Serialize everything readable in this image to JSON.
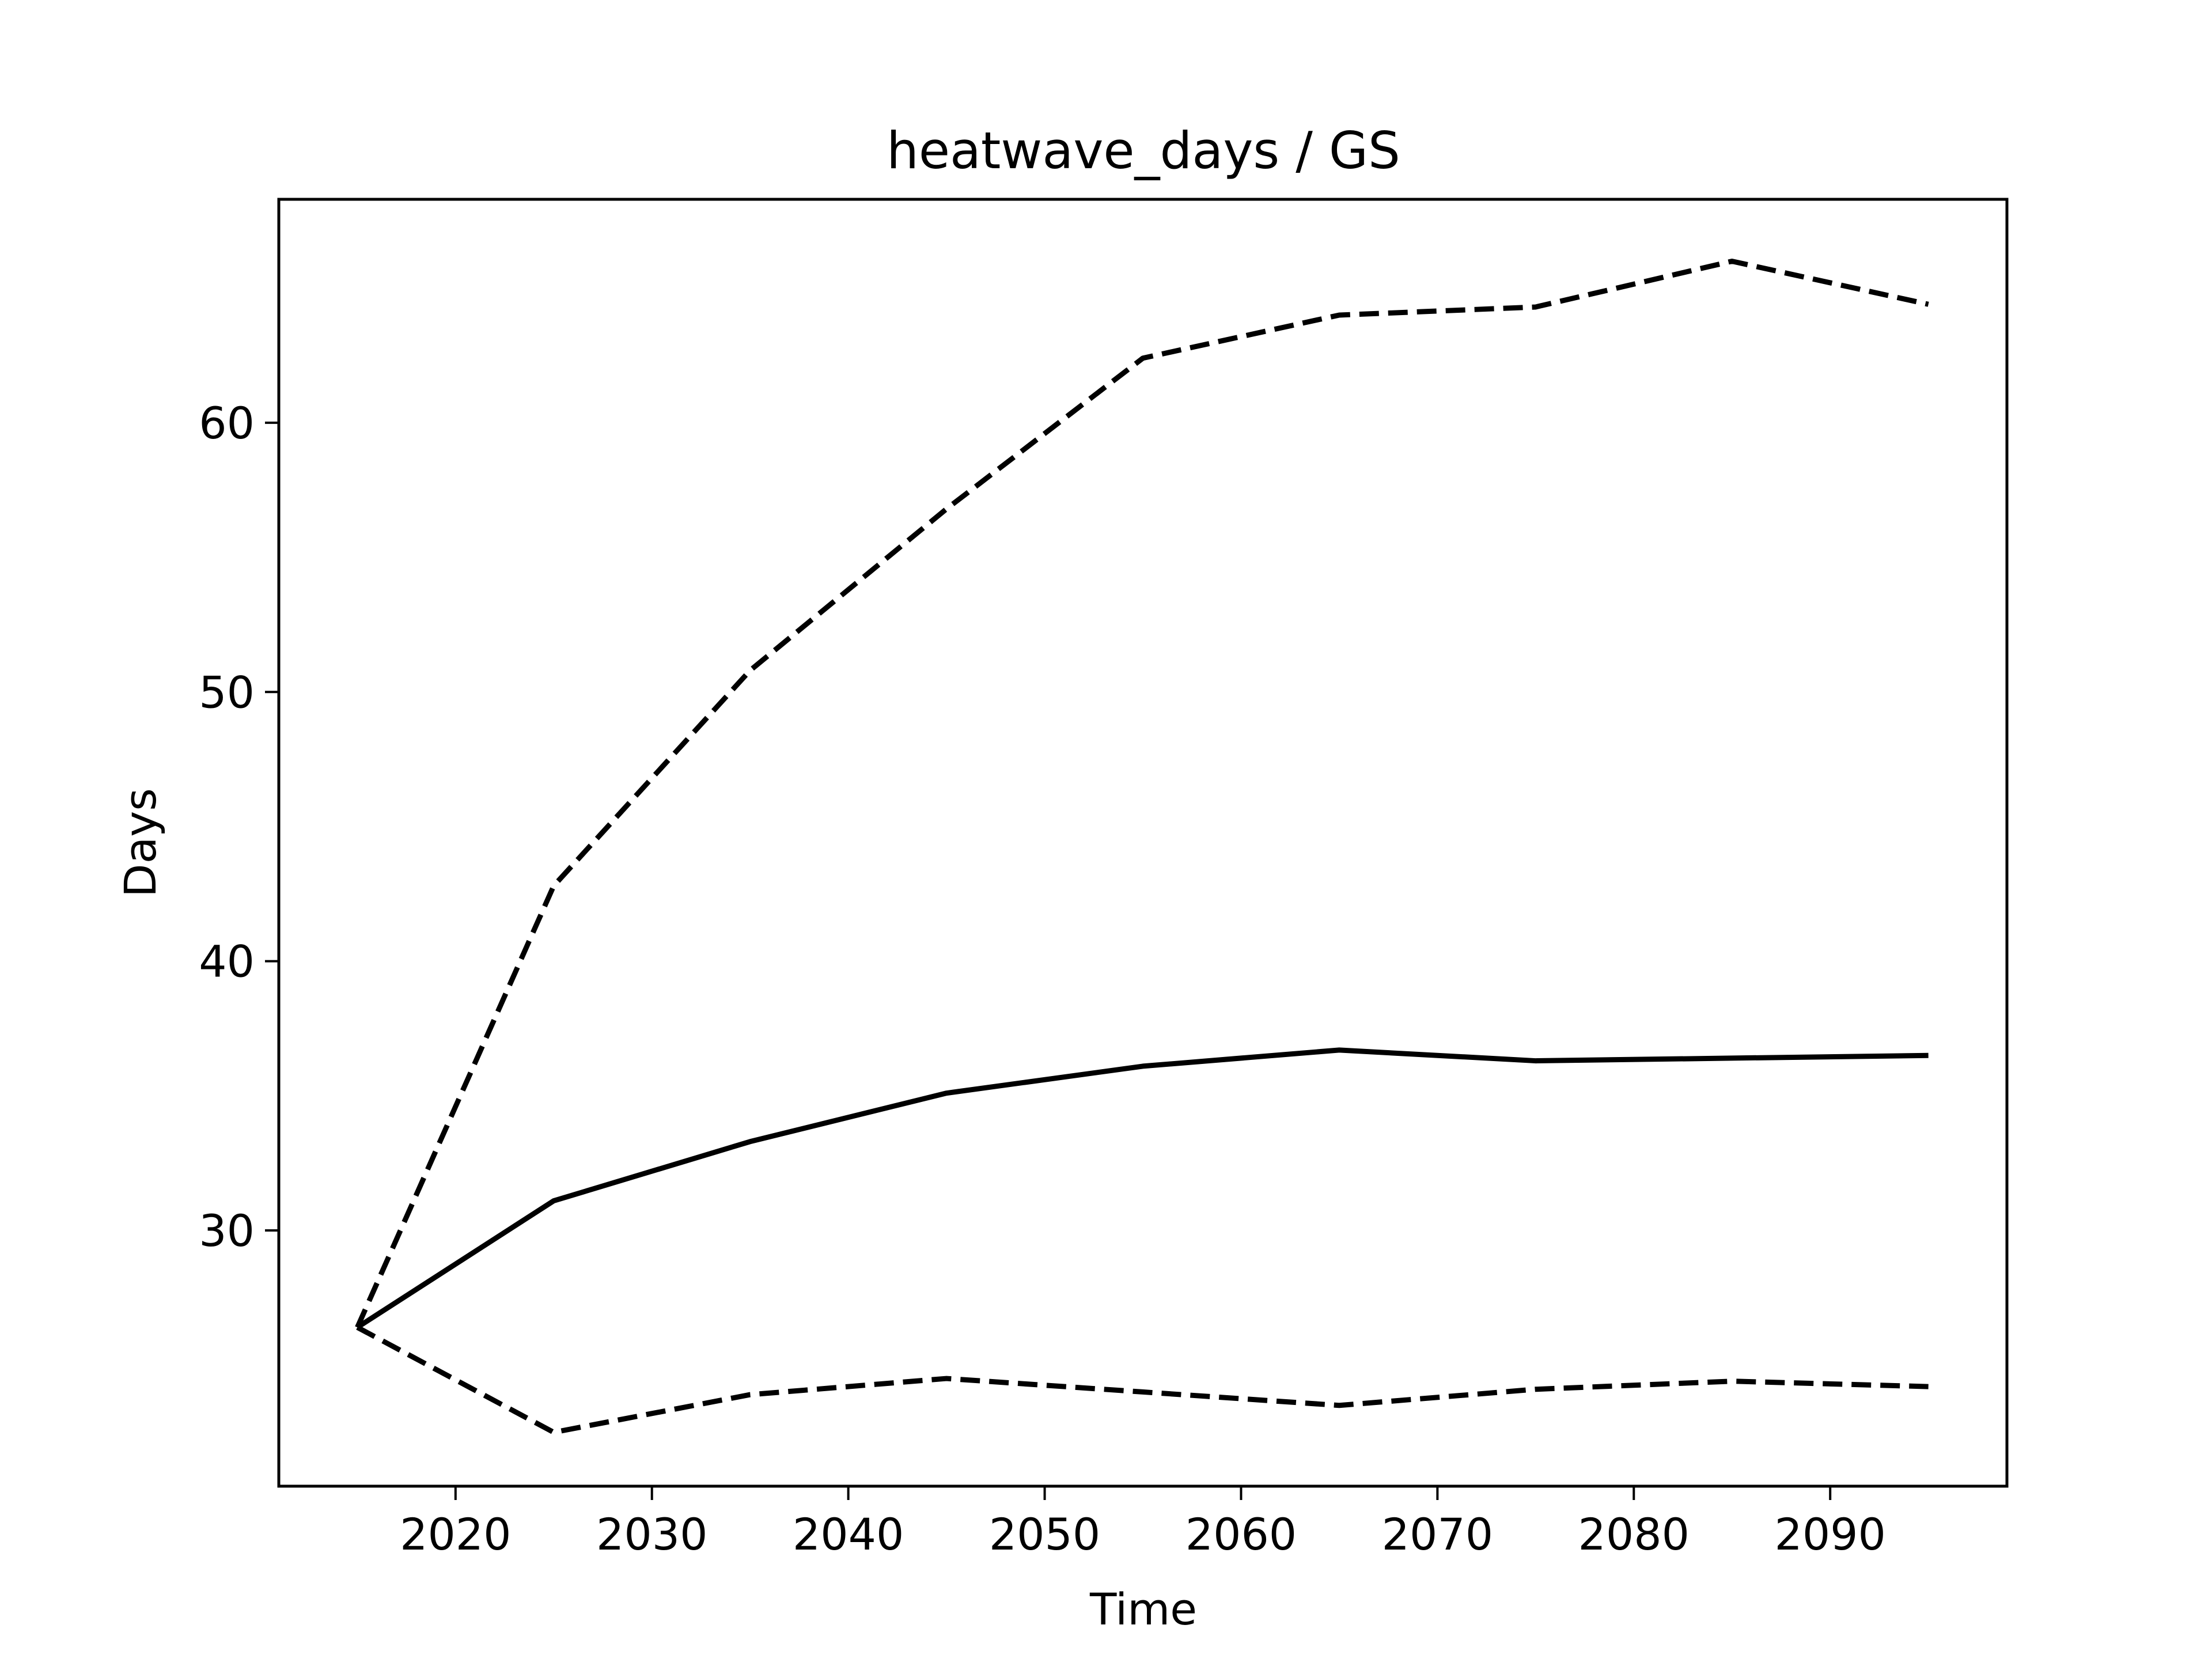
{
  "chart_data": {
    "type": "line",
    "title": "heatwave_days / GS",
    "xlabel": "Time",
    "ylabel": "Days",
    "x": [
      2015,
      2025,
      2035,
      2045,
      2055,
      2065,
      2075,
      2085,
      2095
    ],
    "xlim": [
      2011,
      2099
    ],
    "ylim": [
      20.5,
      68.3
    ],
    "xticks": [
      2020,
      2030,
      2040,
      2050,
      2060,
      2070,
      2080,
      2090
    ],
    "yticks": [
      30,
      40,
      50,
      60
    ],
    "grid": false,
    "series": [
      {
        "style": "dashed",
        "values": [
          26.4,
          42.8,
          50.8,
          56.8,
          62.4,
          64.0,
          64.3,
          66.0,
          64.4
        ]
      },
      {
        "style": "solid",
        "values": [
          26.4,
          31.1,
          33.3,
          35.1,
          36.1,
          36.7,
          36.3,
          36.4,
          36.5
        ]
      },
      {
        "style": "dashed",
        "values": [
          26.4,
          22.5,
          23.9,
          24.5,
          24.0,
          23.5,
          24.1,
          24.4,
          24.2
        ]
      }
    ]
  }
}
